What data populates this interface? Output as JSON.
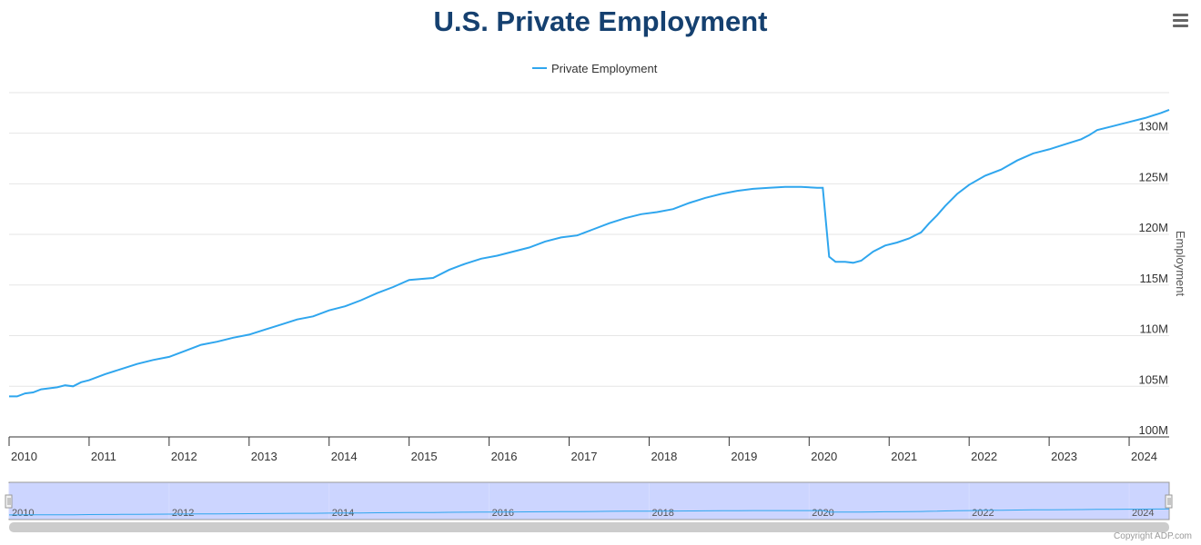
{
  "title": "U.S. Private Employment",
  "legend_label": "Private Employment",
  "credits": "Copyright ADP.com",
  "icons": {
    "menu": "hamburger-menu-icon"
  },
  "colors": {
    "series": "#2fa6ee",
    "title": "#15406f",
    "navigator_mask": "#ccd5ff"
  },
  "chart_data": {
    "type": "line",
    "title": "U.S. Private Employment",
    "ylabel": "Employment",
    "xlabel": "",
    "ylim": [
      100,
      134
    ],
    "y_ticks": [
      100,
      105,
      110,
      115,
      120,
      125,
      130
    ],
    "y_tick_labels": [
      "100M",
      "105M",
      "110M",
      "115M",
      "120M",
      "125M",
      "130M"
    ],
    "x_ticks": [
      2010,
      2011,
      2012,
      2013,
      2014,
      2015,
      2016,
      2017,
      2018,
      2019,
      2020,
      2021,
      2022,
      2023,
      2024
    ],
    "x_tick_labels": [
      "2010",
      "2011",
      "2012",
      "2013",
      "2014",
      "2015",
      "2016",
      "2017",
      "2018",
      "2019",
      "2020",
      "2021",
      "2022",
      "2023",
      "2024"
    ],
    "xlim": [
      2010,
      2024.5
    ],
    "navigator_ticks": [
      "2010",
      "2012",
      "2014",
      "2016",
      "2018",
      "2020",
      "2022",
      "2024"
    ],
    "grid": true,
    "legend": "top-center",
    "series": [
      {
        "name": "Private Employment",
        "unit": "millions",
        "x": [
          2010.0,
          2010.1,
          2010.2,
          2010.3,
          2010.4,
          2010.5,
          2010.6,
          2010.7,
          2010.8,
          2010.9,
          2011.0,
          2011.2,
          2011.4,
          2011.6,
          2011.8,
          2012.0,
          2012.2,
          2012.4,
          2012.6,
          2012.8,
          2013.0,
          2013.2,
          2013.4,
          2013.6,
          2013.8,
          2014.0,
          2014.2,
          2014.4,
          2014.6,
          2014.8,
          2015.0,
          2015.15,
          2015.3,
          2015.5,
          2015.7,
          2015.9,
          2016.1,
          2016.3,
          2016.5,
          2016.7,
          2016.9,
          2017.1,
          2017.3,
          2017.5,
          2017.7,
          2017.9,
          2018.1,
          2018.3,
          2018.5,
          2018.7,
          2018.9,
          2019.1,
          2019.3,
          2019.5,
          2019.7,
          2019.9,
          2020.1,
          2020.17,
          2020.25,
          2020.33,
          2020.45,
          2020.55,
          2020.65,
          2020.8,
          2020.95,
          2021.1,
          2021.25,
          2021.4,
          2021.5,
          2021.6,
          2021.7,
          2021.85,
          2022.0,
          2022.2,
          2022.4,
          2022.6,
          2022.8,
          2023.0,
          2023.2,
          2023.4,
          2023.5,
          2023.6,
          2023.8,
          2024.0,
          2024.2,
          2024.4,
          2024.5
        ],
        "values": [
          104.0,
          104.0,
          104.3,
          104.4,
          104.7,
          104.8,
          104.9,
          105.1,
          105.0,
          105.4,
          105.6,
          106.2,
          106.7,
          107.2,
          107.6,
          107.9,
          108.5,
          109.1,
          109.4,
          109.8,
          110.1,
          110.6,
          111.1,
          111.6,
          111.9,
          112.5,
          112.9,
          113.5,
          114.2,
          114.8,
          115.5,
          115.6,
          115.7,
          116.5,
          117.1,
          117.6,
          117.9,
          118.3,
          118.7,
          119.3,
          119.7,
          119.9,
          120.5,
          121.1,
          121.6,
          122.0,
          122.2,
          122.5,
          123.1,
          123.6,
          124.0,
          124.3,
          124.5,
          124.6,
          124.7,
          124.7,
          124.6,
          124.6,
          117.8,
          117.3,
          117.3,
          117.2,
          117.4,
          118.3,
          118.9,
          119.2,
          119.6,
          120.2,
          121.1,
          121.9,
          122.8,
          124.0,
          124.9,
          125.8,
          126.4,
          127.3,
          128.0,
          128.4,
          128.9,
          129.4,
          129.8,
          130.3,
          130.7,
          131.1,
          131.5,
          132.0,
          132.3
        ]
      }
    ]
  }
}
